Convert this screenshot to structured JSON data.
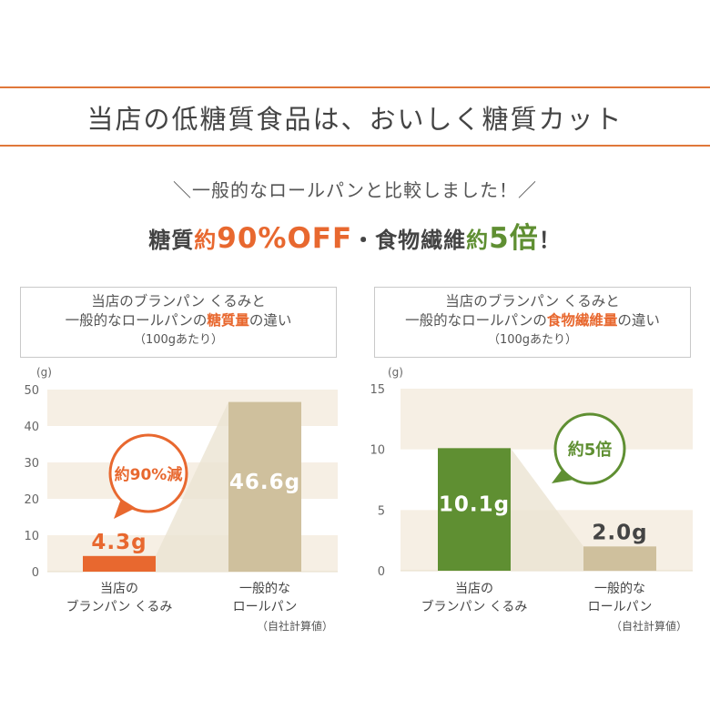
{
  "header": {
    "title": "当店の低糖質食品は、おいしく糖質カット",
    "comparison_note": "＼一般的なロールパンと比較しました！／",
    "tagline": {
      "part1": "糖質",
      "part2": "約",
      "part3": "90%OFF",
      "part4": "・食物繊維",
      "part5": "約",
      "part6": "5倍",
      "part7": "！"
    }
  },
  "panels": [
    {
      "line1": "当店のブランパン くるみと",
      "line2_pre": "一般的なロールパンの",
      "line2_em": "糖質量",
      "line2_post": "の違い",
      "line3": "（100gあたり）"
    },
    {
      "line1": "当店のブランパン くるみと",
      "line2_pre": "一般的なロールパンの",
      "line2_em": "食物繊維量",
      "line2_post": "の違い",
      "line3": "（100gあたり）"
    }
  ],
  "footnote": "（自社計算値）",
  "colors": {
    "accent_orange": "#e8682f",
    "accent_green": "#5f8f32",
    "bar_tan": "#cfc09d",
    "band": "#f6efe4"
  },
  "chart_data": [
    {
      "type": "bar",
      "unit": "(g)",
      "ylim": [
        0,
        50
      ],
      "yticks": [
        0,
        10,
        20,
        30,
        40,
        50
      ],
      "categories": [
        [
          "当店の",
          "ブランパン くるみ"
        ],
        [
          "一般的な",
          "ロールパン"
        ]
      ],
      "values": [
        4.3,
        46.6
      ],
      "value_labels": [
        "4.3g",
        "46.6g"
      ],
      "bar_colors": [
        "#e8682f",
        "#cfc09d"
      ],
      "callout": "約90%減"
    },
    {
      "type": "bar",
      "unit": "(g)",
      "ylim": [
        0,
        15
      ],
      "yticks": [
        0,
        5,
        10,
        15
      ],
      "categories": [
        [
          "当店の",
          "ブランパン くるみ"
        ],
        [
          "一般的な",
          "ロールパン"
        ]
      ],
      "values": [
        10.1,
        2.0
      ],
      "value_labels": [
        "10.1g",
        "2.0g"
      ],
      "bar_colors": [
        "#5f8f32",
        "#cfc09d"
      ],
      "callout": "約5倍"
    }
  ]
}
